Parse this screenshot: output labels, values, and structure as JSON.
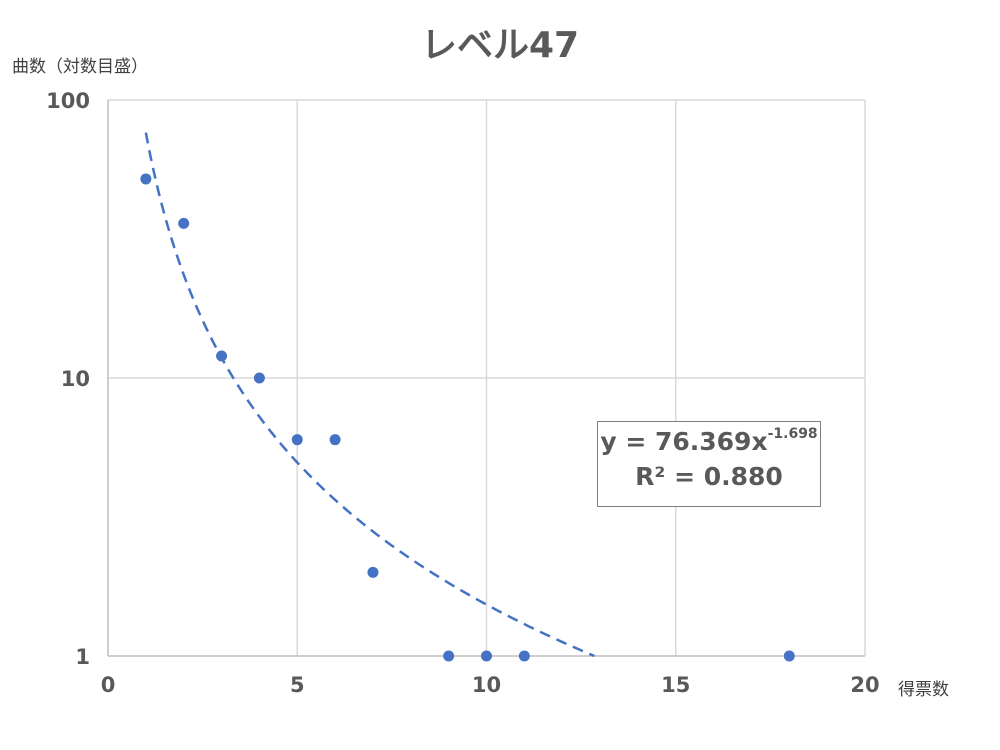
{
  "chart_data": {
    "type": "scatter",
    "title": "レベル47",
    "xlabel": "得票数",
    "ylabel": "曲数（対数目盛）",
    "xlim": [
      0,
      20
    ],
    "ylim": [
      1,
      100
    ],
    "y_scale": "log",
    "grid": true,
    "x_ticks": [
      "0",
      "5",
      "10",
      "15",
      "20"
    ],
    "y_ticks": [
      "1",
      "10",
      "100"
    ],
    "series": [
      {
        "x": [
          1,
          2,
          3,
          4,
          5,
          6,
          7,
          9,
          10,
          11,
          18
        ],
        "y": [
          52,
          36,
          12,
          10,
          6,
          6,
          2,
          1,
          1,
          1,
          1
        ]
      }
    ],
    "trendline": {
      "type": "power",
      "coefficient": 76.369,
      "exponent": -1.698,
      "style": "dashed",
      "equation_prefix": "y = 76.369x",
      "equation_exponent": "-1.698",
      "r_squared_text": "R² = 0.880"
    },
    "colors": {
      "marker": "#4472c4",
      "trendline": "#4472c4",
      "grid": "#d9d9d9",
      "axis": "#bfbfbf"
    }
  }
}
